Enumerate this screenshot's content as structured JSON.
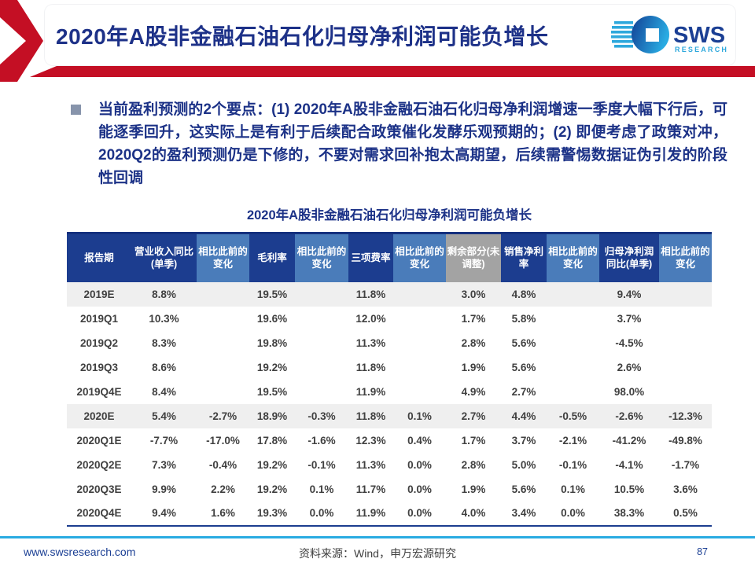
{
  "header": {
    "title": "2020年A股非金融石油石化归母净利润可能负增长",
    "logo": {
      "text": "SWS",
      "subtext": "RESEARCH"
    }
  },
  "bullet": {
    "text": "当前盈利预测的2个要点：(1) 2020年A股非金融石油石化归母净利润增速一季度大幅下行后，可能逐季回升，这实际上是有利于后续配合政策催化发酵乐观预期的；(2) 即便考虑了政策对冲，2020Q2的盈利预测仍是下修的，不要对需求回补抱太高期望，后续需警惕数据证伪引发的阶段性回调"
  },
  "chart_data": {
    "type": "table",
    "title": "2020年A股非金融石油石化归母净利润可能负增长",
    "columns": [
      {
        "label": "报告期",
        "style": "dark"
      },
      {
        "label": "营业收入同比(单季)",
        "style": "dark"
      },
      {
        "label": "相比此前的变化",
        "style": "light"
      },
      {
        "label": "毛利率",
        "style": "dark"
      },
      {
        "label": "相比此前的变化",
        "style": "light"
      },
      {
        "label": "三项费率",
        "style": "dark"
      },
      {
        "label": "相比此前的变化",
        "style": "light"
      },
      {
        "label": "剩余部分(未调整)",
        "style": "gray"
      },
      {
        "label": "销售净利率",
        "style": "dark"
      },
      {
        "label": "相比此前的变化",
        "style": "light"
      },
      {
        "label": "归母净利润同比(单季)",
        "style": "dark"
      },
      {
        "label": "相比此前的变化",
        "style": "light"
      }
    ],
    "rows": [
      {
        "period": "2019E",
        "bold": true,
        "shaded": true,
        "values": [
          "8.8%",
          "",
          "19.5%",
          "",
          "11.8%",
          "",
          "3.0%",
          "4.8%",
          "",
          "9.4%",
          ""
        ],
        "colors": [
          "",
          "",
          "",
          "",
          "",
          "",
          "",
          "",
          "",
          "",
          ""
        ]
      },
      {
        "period": "2019Q1",
        "bold": false,
        "shaded": false,
        "values": [
          "10.3%",
          "",
          "19.6%",
          "",
          "12.0%",
          "",
          "1.7%",
          "5.8%",
          "",
          "3.7%",
          ""
        ],
        "colors": [
          "",
          "",
          "",
          "",
          "",
          "",
          "",
          "",
          "",
          "",
          ""
        ]
      },
      {
        "period": "2019Q2",
        "bold": false,
        "shaded": false,
        "values": [
          "8.3%",
          "",
          "19.8%",
          "",
          "11.3%",
          "",
          "2.8%",
          "5.6%",
          "",
          "-4.5%",
          ""
        ],
        "colors": [
          "",
          "",
          "",
          "",
          "",
          "",
          "",
          "",
          "",
          "",
          ""
        ]
      },
      {
        "period": "2019Q3",
        "bold": false,
        "shaded": false,
        "values": [
          "8.6%",
          "",
          "19.2%",
          "",
          "11.8%",
          "",
          "1.9%",
          "5.6%",
          "",
          "2.6%",
          ""
        ],
        "colors": [
          "",
          "",
          "",
          "",
          "",
          "",
          "",
          "",
          "",
          "",
          ""
        ]
      },
      {
        "period": "2019Q4E",
        "bold": false,
        "shaded": false,
        "values": [
          "8.4%",
          "",
          "19.5%",
          "",
          "11.9%",
          "",
          "4.9%",
          "2.7%",
          "",
          "98.0%",
          ""
        ],
        "colors": [
          "",
          "",
          "",
          "",
          "",
          "",
          "",
          "",
          "",
          "",
          ""
        ]
      },
      {
        "period": "2020E",
        "bold": true,
        "shaded": true,
        "values": [
          "5.4%",
          "-2.7%",
          "18.9%",
          "-0.3%",
          "11.8%",
          "0.1%",
          "2.7%",
          "4.4%",
          "-0.5%",
          "-2.6%",
          "-12.3%"
        ],
        "colors": [
          "",
          "g",
          "",
          "g",
          "",
          "r",
          "",
          "",
          "g",
          "",
          "g"
        ]
      },
      {
        "period": "2020Q1E",
        "bold": false,
        "shaded": false,
        "values": [
          "-7.7%",
          "-17.0%",
          "17.8%",
          "-1.6%",
          "12.3%",
          "0.4%",
          "1.7%",
          "3.7%",
          "-2.1%",
          "-41.2%",
          "-49.8%"
        ],
        "colors": [
          "",
          "g",
          "",
          "g",
          "",
          "r",
          "",
          "",
          "g",
          "",
          "g"
        ]
      },
      {
        "period": "2020Q2E",
        "bold": false,
        "shaded": false,
        "values": [
          "7.3%",
          "-0.4%",
          "19.2%",
          "-0.1%",
          "11.3%",
          "0.0%",
          "2.8%",
          "5.0%",
          "-0.1%",
          "-4.1%",
          "-1.7%"
        ],
        "colors": [
          "",
          "g",
          "",
          "g",
          "",
          "",
          "",
          "",
          "g",
          "",
          "g"
        ]
      },
      {
        "period": "2020Q3E",
        "bold": false,
        "shaded": false,
        "values": [
          "9.9%",
          "2.2%",
          "19.2%",
          "0.1%",
          "11.7%",
          "0.0%",
          "1.9%",
          "5.6%",
          "0.1%",
          "10.5%",
          "3.6%"
        ],
        "colors": [
          "",
          "r",
          "",
          "r",
          "",
          "",
          "",
          "",
          "r",
          "",
          "r"
        ]
      },
      {
        "period": "2020Q4E",
        "bold": false,
        "shaded": false,
        "values": [
          "9.4%",
          "1.6%",
          "19.3%",
          "0.0%",
          "11.9%",
          "0.0%",
          "4.0%",
          "3.4%",
          "0.0%",
          "38.3%",
          "0.5%"
        ],
        "colors": [
          "",
          "r",
          "",
          "",
          "",
          "",
          "",
          "",
          "",
          "",
          "r"
        ]
      }
    ]
  },
  "footer": {
    "site": "www.swsresearch.com",
    "source": "资料来源：Wind，申万宏源研究",
    "page": "87"
  },
  "colors": {
    "accent_red": "#c40f24",
    "navy_text": "#1c3287",
    "header_dark_blue": "#1c3d8f",
    "header_light_blue": "#4a7cba",
    "header_gray": "#a3a3a3",
    "value_green": "#00a550",
    "value_red": "#e60000",
    "row_shade": "#efefef",
    "footer_line_blue": "#29abe2",
    "logo_blue": "#2ea8dc"
  }
}
